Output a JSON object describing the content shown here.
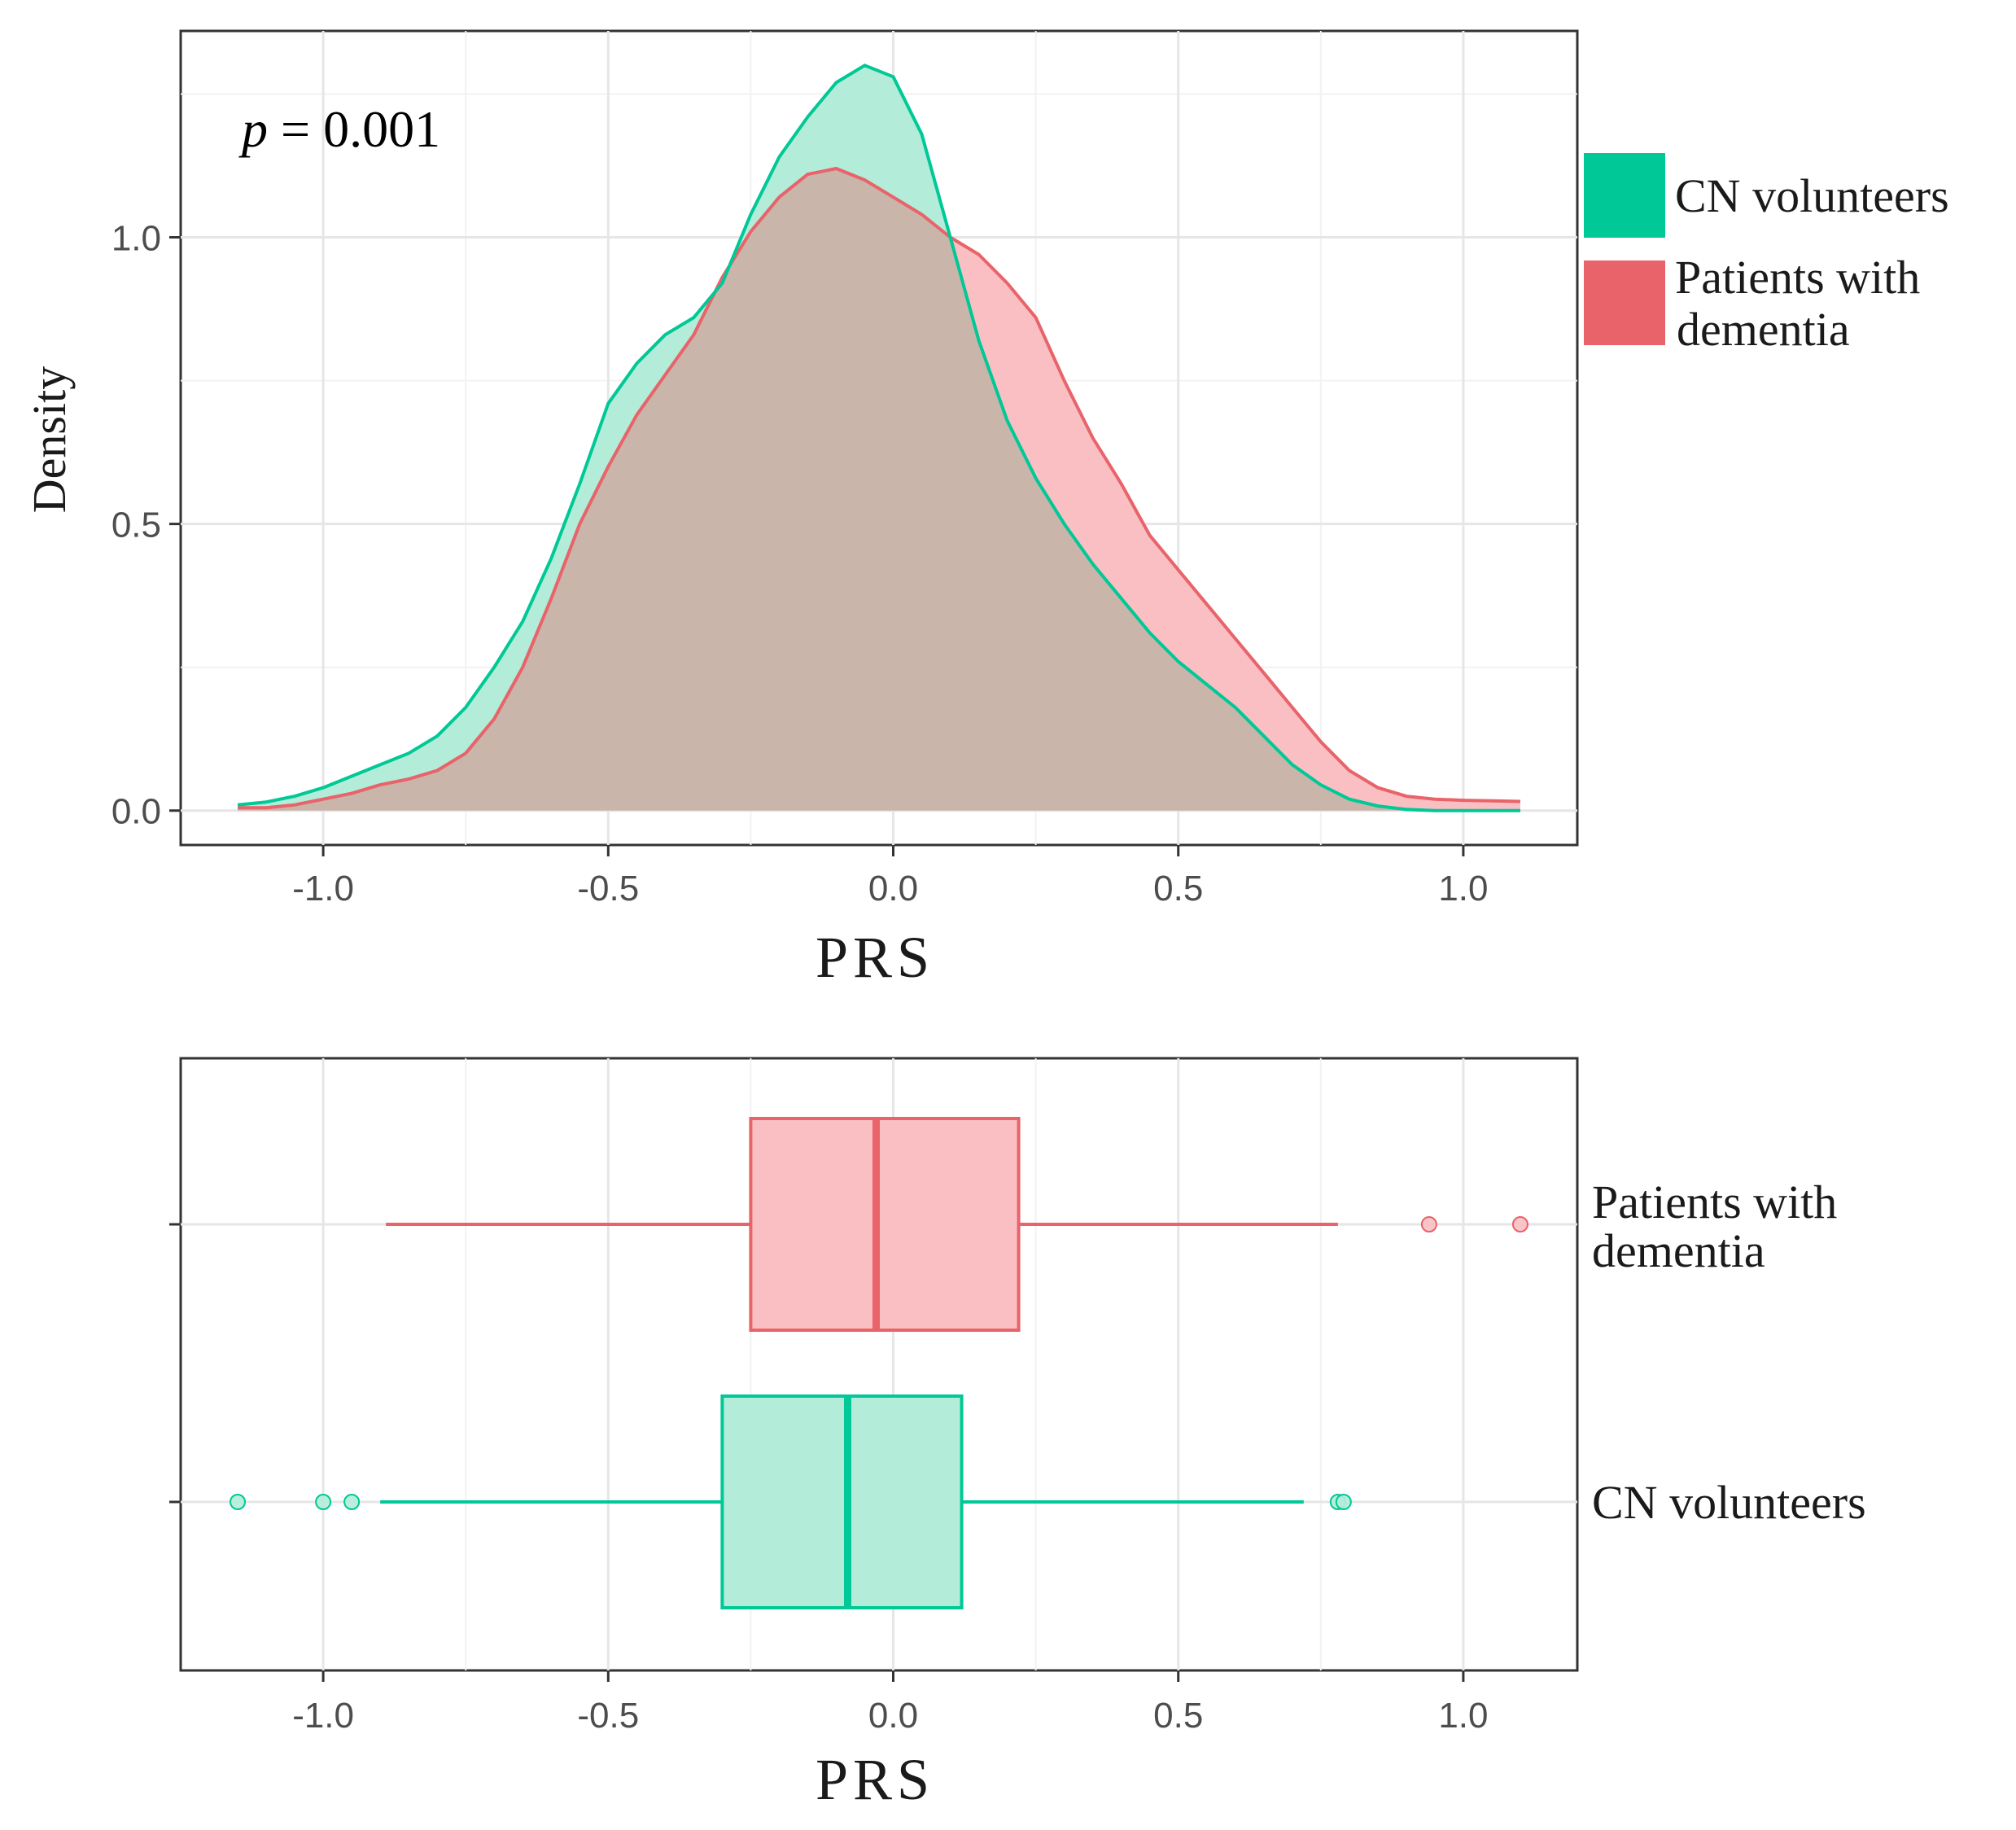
{
  "colors": {
    "cn": "#00C896",
    "dementia": "#E8636A",
    "cn_fill": "#B3ECD9",
    "dementia_fill": "#F9BFC2",
    "overlap": "#C9B5AA"
  },
  "chart_data": [
    {
      "type": "area",
      "title": "",
      "xlabel": "PRS",
      "ylabel": "Density",
      "xlim": [
        -1.25,
        1.2
      ],
      "ylim": [
        -0.06,
        1.36
      ],
      "xticks": [
        -1.0,
        -0.5,
        0.0,
        0.5,
        1.0
      ],
      "xtick_labels": [
        "-1.0",
        "-0.5",
        "0.0",
        "0.5",
        "1.0"
      ],
      "yticks": [
        0.0,
        0.5,
        1.0
      ],
      "ytick_labels": [
        "0.0",
        "0.5",
        "1.0"
      ],
      "grid": true,
      "annotation": {
        "italic": "p",
        "text": " = 0.001"
      },
      "legend": [
        "CN volunteers",
        "Patients with dementia"
      ],
      "legend_lines": [
        [
          "CN volunteers"
        ],
        [
          "Patients with",
          "dementia"
        ]
      ],
      "legend_placement": "right",
      "series": [
        {
          "name": "CN volunteers",
          "x": [
            -1.15,
            -1.1,
            -1.05,
            -1.0,
            -0.95,
            -0.9,
            -0.85,
            -0.8,
            -0.75,
            -0.7,
            -0.65,
            -0.6,
            -0.55,
            -0.5,
            -0.45,
            -0.4,
            -0.35,
            -0.3,
            -0.25,
            -0.2,
            -0.15,
            -0.1,
            -0.05,
            0.0,
            0.05,
            0.1,
            0.15,
            0.2,
            0.25,
            0.3,
            0.35,
            0.4,
            0.45,
            0.5,
            0.55,
            0.6,
            0.65,
            0.7,
            0.75,
            0.8,
            0.85,
            0.9,
            0.95,
            1.0,
            1.05,
            1.1
          ],
          "values": [
            0.01,
            0.015,
            0.025,
            0.04,
            0.06,
            0.08,
            0.1,
            0.13,
            0.18,
            0.25,
            0.33,
            0.44,
            0.57,
            0.71,
            0.78,
            0.83,
            0.86,
            0.92,
            1.04,
            1.14,
            1.21,
            1.27,
            1.3,
            1.28,
            1.18,
            1.0,
            0.82,
            0.68,
            0.58,
            0.5,
            0.43,
            0.37,
            0.31,
            0.26,
            0.22,
            0.18,
            0.13,
            0.08,
            0.045,
            0.02,
            0.008,
            0.002,
            0.0,
            0.0,
            0.0,
            0.0
          ]
        },
        {
          "name": "Patients with dementia",
          "x": [
            -1.15,
            -1.1,
            -1.05,
            -1.0,
            -0.95,
            -0.9,
            -0.85,
            -0.8,
            -0.75,
            -0.7,
            -0.65,
            -0.6,
            -0.55,
            -0.5,
            -0.45,
            -0.4,
            -0.35,
            -0.3,
            -0.25,
            -0.2,
            -0.15,
            -0.1,
            -0.05,
            0.0,
            0.05,
            0.1,
            0.15,
            0.2,
            0.25,
            0.3,
            0.35,
            0.4,
            0.45,
            0.5,
            0.55,
            0.6,
            0.65,
            0.7,
            0.75,
            0.8,
            0.85,
            0.9,
            0.95,
            1.0,
            1.05,
            1.1
          ],
          "values": [
            0.005,
            0.005,
            0.01,
            0.02,
            0.03,
            0.045,
            0.055,
            0.07,
            0.1,
            0.16,
            0.25,
            0.37,
            0.5,
            0.6,
            0.69,
            0.76,
            0.83,
            0.93,
            1.01,
            1.07,
            1.11,
            1.12,
            1.1,
            1.07,
            1.04,
            1.0,
            0.97,
            0.92,
            0.86,
            0.75,
            0.65,
            0.57,
            0.48,
            0.42,
            0.36,
            0.3,
            0.24,
            0.18,
            0.12,
            0.07,
            0.04,
            0.025,
            0.02,
            0.018,
            0.017,
            0.016
          ]
        }
      ]
    },
    {
      "type": "box",
      "xlabel": "PRS",
      "xlim": [
        -1.25,
        1.2
      ],
      "xticks": [
        -1.0,
        -0.5,
        0.0,
        0.5,
        1.0
      ],
      "xtick_labels": [
        "-1.0",
        "-0.5",
        "0.0",
        "0.5",
        "1.0"
      ],
      "categories": [
        "Patients with dementia",
        "CN volunteers"
      ],
      "category_lines": [
        [
          "Patients with",
          "dementia"
        ],
        [
          "CN volunteers"
        ]
      ],
      "series": [
        {
          "name": "Patients with dementia",
          "whisker_low": -0.89,
          "q1": -0.25,
          "median": -0.03,
          "q3": 0.22,
          "whisker_high": 0.78,
          "outliers": [
            0.94,
            1.1
          ]
        },
        {
          "name": "CN volunteers",
          "whisker_low": -0.9,
          "q1": -0.3,
          "median": -0.08,
          "q3": 0.12,
          "whisker_high": 0.72,
          "outliers": [
            -1.15,
            -1.0,
            -0.95,
            0.78,
            0.79
          ]
        }
      ]
    }
  ]
}
